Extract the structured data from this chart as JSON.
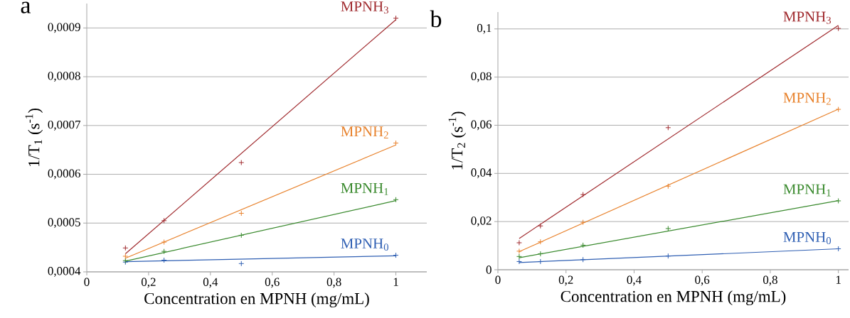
{
  "chart_data": [
    {
      "type": "scatter",
      "title": "a",
      "xlabel": "Concentration en MPNH (mg/mL)",
      "ylabel": "1/T$_{1}$ (s$^{-1}$)",
      "xlim": [
        0,
        1.1
      ],
      "ylim": [
        0.0004,
        0.00095
      ],
      "xticks": [
        0,
        {
          "value": 0.2,
          "label": "0,2"
        },
        {
          "value": 0.4,
          "label": "0,4"
        },
        {
          "value": 0.6,
          "label": "0,6"
        },
        {
          "value": 0.8,
          "label": "0,8"
        },
        1
      ],
      "yticks": [
        {
          "value": 0.0004,
          "label": "0,0004"
        },
        {
          "value": 0.0005,
          "label": "0,0005"
        },
        {
          "value": 0.0006,
          "label": "0,0006"
        },
        {
          "value": 0.0007,
          "label": "0,0007"
        },
        {
          "value": 0.0008,
          "label": "0,0008"
        },
        {
          "value": 0.0009,
          "label": "0,0009"
        }
      ],
      "grid": "y",
      "marker": "cross",
      "series": [
        {
          "name": "MPNH$_{0}$",
          "color": "#2f5fb3",
          "x": [
            0.125,
            0.25,
            0.5,
            1
          ],
          "values": [
            0.00042,
            0.000424,
            0.000417,
            0.000434
          ]
        },
        {
          "type": "line",
          "marker": "none",
          "color": "#2f5fb3",
          "x": [
            0.125,
            1
          ],
          "values": [
            0.000421,
            0.000433
          ]
        },
        {
          "name": "MPNH$_{1}$",
          "color": "#3a8a2e",
          "x": [
            0.125,
            0.25,
            0.5,
            1
          ],
          "values": [
            0.000423,
            0.000442,
            0.000475,
            0.000548
          ]
        },
        {
          "type": "line",
          "marker": "none",
          "color": "#3a8a2e",
          "x": [
            0.125,
            1
          ],
          "values": [
            0.000422,
            0.000546
          ]
        },
        {
          "name": "MPNH$_{2}$",
          "color": "#e8822c",
          "x": [
            0.125,
            0.25,
            0.5,
            1
          ],
          "values": [
            0.000432,
            0.000461,
            0.00052,
            0.000664
          ]
        },
        {
          "type": "line",
          "marker": "none",
          "color": "#e8822c",
          "x": [
            0.125,
            1
          ],
          "values": [
            0.000428,
            0.00066
          ]
        },
        {
          "name": "MPNH$_{3}$",
          "color": "#a02a2e",
          "x": [
            0.125,
            0.25,
            0.5,
            1
          ],
          "values": [
            0.000449,
            0.000505,
            0.000624,
            0.00092
          ]
        },
        {
          "type": "line",
          "marker": "none",
          "color": "#a02a2e",
          "x": [
            0.125,
            1
          ],
          "values": [
            0.000437,
            0.000917
          ]
        }
      ]
    },
    {
      "type": "scatter",
      "title": "b",
      "xlabel": "Concentration en MPNH (mg/mL)",
      "ylabel": "1/T$_{2}$ (s$^{-1}$)",
      "xlim": [
        0,
        1.03
      ],
      "ylim": [
        0,
        0.107
      ],
      "xticks": [
        0,
        {
          "value": 0.2,
          "label": "0,2"
        },
        {
          "value": 0.4,
          "label": "0,4"
        },
        {
          "value": 0.6,
          "label": "0,6"
        },
        {
          "value": 0.8,
          "label": "0,8"
        },
        1
      ],
      "yticks": [
        0,
        {
          "value": 0.02,
          "label": "0,02"
        },
        {
          "value": 0.04,
          "label": "0,04"
        },
        {
          "value": 0.06,
          "label": "0,06"
        },
        {
          "value": 0.08,
          "label": "0,08"
        },
        {
          "value": 0.1,
          "label": "0,1"
        }
      ],
      "grid": "y",
      "marker": "cross",
      "series": [
        {
          "name": "MPNH$_{0}$",
          "color": "#2f5fb3",
          "x": [
            0.0625,
            0.125,
            0.25,
            0.5,
            1
          ],
          "values": [
            0.0034,
            0.0034,
            0.0042,
            0.0057,
            0.0087
          ]
        },
        {
          "type": "line",
          "marker": "none",
          "color": "#2f5fb3",
          "x": [
            0.0625,
            1
          ],
          "values": [
            0.003,
            0.0087
          ]
        },
        {
          "name": "MPNH$_{1}$",
          "color": "#3a8a2e",
          "x": [
            0.0625,
            0.125,
            0.25,
            0.5,
            1
          ],
          "values": [
            0.0055,
            0.0066,
            0.0102,
            0.0171,
            0.0286
          ]
        },
        {
          "type": "line",
          "marker": "none",
          "color": "#3a8a2e",
          "x": [
            0.0625,
            1
          ],
          "values": [
            0.005,
            0.0287
          ]
        },
        {
          "name": "MPNH$_{2}$",
          "color": "#e8822c",
          "x": [
            0.0625,
            0.125,
            0.25,
            0.5,
            1
          ],
          "values": [
            0.0077,
            0.0116,
            0.0197,
            0.0347,
            0.0666
          ]
        },
        {
          "type": "line",
          "marker": "none",
          "color": "#e8822c",
          "x": [
            0.0625,
            1
          ],
          "values": [
            0.0075,
            0.0667
          ]
        },
        {
          "name": "MPNH$_{3}$",
          "color": "#a02a2e",
          "x": [
            0.0625,
            0.125,
            0.25,
            0.5,
            1
          ],
          "values": [
            0.0112,
            0.0182,
            0.0312,
            0.059,
            0.1002
          ]
        },
        {
          "type": "line",
          "marker": "none",
          "color": "#a02a2e",
          "x": [
            0.0625,
            1
          ],
          "values": [
            0.013,
            0.1015
          ]
        }
      ]
    }
  ]
}
